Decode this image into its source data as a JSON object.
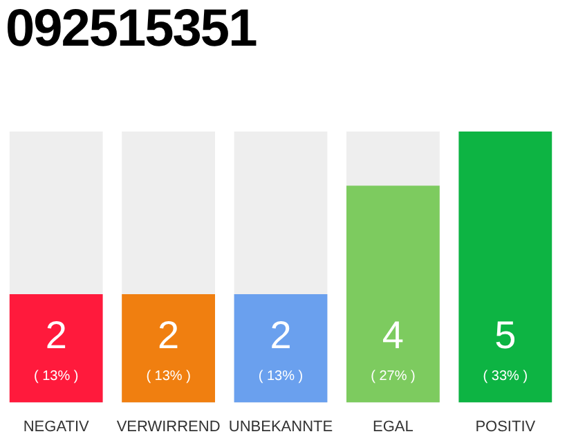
{
  "chart_data": {
    "type": "bar",
    "title": "092515351",
    "categories": [
      "NEGATIV",
      "VERWIRREND",
      "UNBEKANNTE",
      "EGAL",
      "POSITIV"
    ],
    "values": [
      2,
      2,
      2,
      4,
      5
    ],
    "colors": [
      "#ff1a3c",
      "#f07f10",
      "#6aa0ee",
      "#7dcb5f",
      "#0db443"
    ],
    "tick_labels": "x",
    "grid": false,
    "legend": false,
    "data_labels": true,
    "annotations": [
      "( 13% )",
      "( 13% )",
      "( 13% )",
      "( 27% )",
      "( 33% )"
    ]
  }
}
